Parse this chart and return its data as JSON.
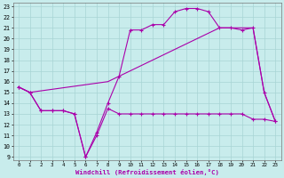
{
  "bg_color": "#c8ecec",
  "grid_color": "#a8d4d4",
  "line_color": "#aa00aa",
  "xlabel": "Windchill (Refroidissement éolien,°C)",
  "xlim": [
    0,
    23
  ],
  "ylim": [
    9,
    23
  ],
  "xticks": [
    0,
    1,
    2,
    3,
    4,
    5,
    6,
    7,
    8,
    9,
    10,
    11,
    12,
    13,
    14,
    15,
    16,
    17,
    18,
    19,
    20,
    21,
    22,
    23
  ],
  "yticks": [
    9,
    10,
    11,
    12,
    13,
    14,
    15,
    16,
    17,
    18,
    19,
    20,
    21,
    22,
    23
  ],
  "line1_x": [
    0,
    1,
    2,
    3,
    4,
    5,
    6,
    7,
    8,
    9,
    10,
    11,
    12,
    13,
    14,
    15,
    16,
    17,
    18,
    19,
    20,
    21,
    22,
    23
  ],
  "line1_y": [
    15.5,
    15.0,
    13.3,
    13.3,
    13.3,
    13.0,
    9.0,
    11.0,
    13.5,
    13.0,
    13.0,
    13.0,
    13.0,
    13.0,
    13.0,
    13.0,
    13.0,
    13.0,
    13.0,
    13.0,
    13.0,
    12.5,
    12.5,
    12.3
  ],
  "line2_x": [
    0,
    1,
    2,
    3,
    4,
    5,
    6,
    7,
    8,
    9,
    10,
    11,
    12,
    13,
    14,
    15,
    16,
    17,
    18,
    19,
    20,
    21,
    22,
    23
  ],
  "line2_y": [
    15.5,
    15.0,
    13.3,
    13.3,
    13.3,
    13.0,
    9.0,
    11.3,
    14.0,
    16.5,
    20.8,
    20.8,
    21.3,
    21.3,
    22.5,
    22.8,
    22.8,
    22.5,
    21.0,
    21.0,
    20.8,
    21.0,
    15.0,
    12.3
  ],
  "line3_x": [
    0,
    1,
    8,
    9,
    10,
    11,
    12,
    13,
    14,
    15,
    16,
    17,
    18,
    19,
    20,
    21,
    22,
    23
  ],
  "line3_y": [
    15.5,
    15.0,
    16.0,
    16.5,
    17.0,
    17.5,
    18.0,
    18.5,
    19.0,
    19.5,
    20.0,
    20.5,
    21.0,
    21.0,
    21.0,
    21.0,
    15.0,
    12.3
  ]
}
